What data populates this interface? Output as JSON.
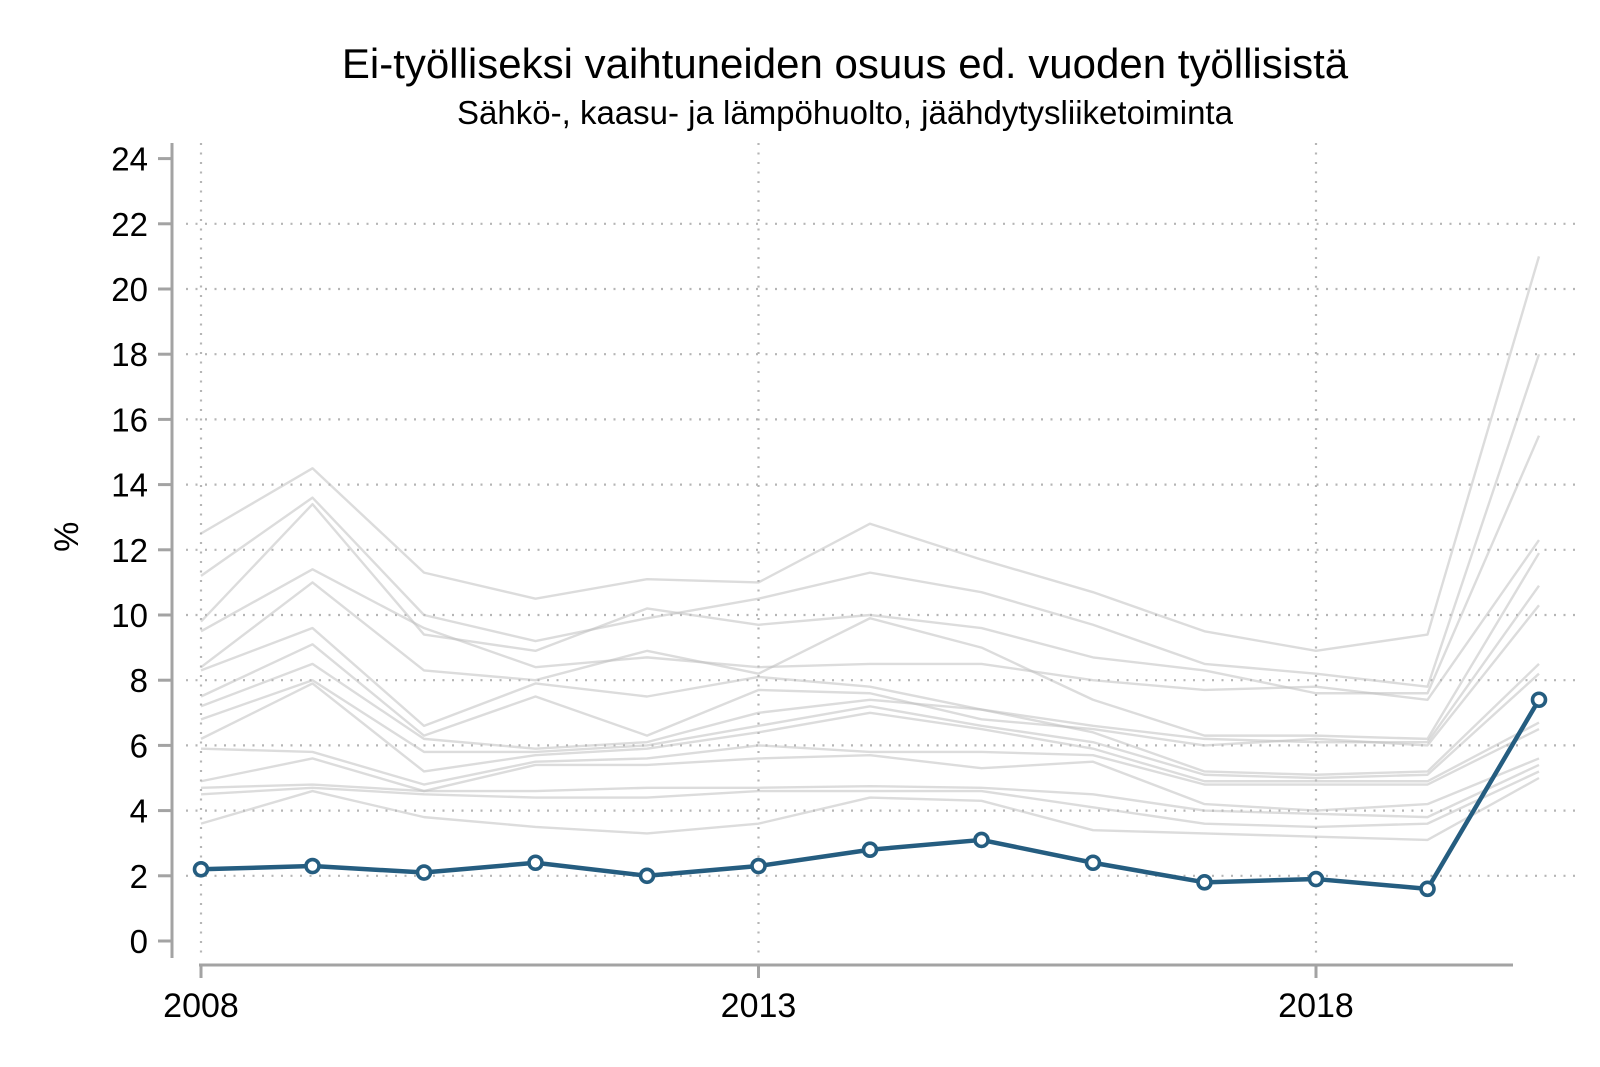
{
  "title": "Ei-työlliseksi vaihtuneiden osuus ed. vuoden työllisistä",
  "subtitle": "Sähkö-, kaasu- ja lämpöhuolto, jäähdytysliiketoiminta",
  "y_axis": {
    "label": "%",
    "min": 0,
    "max": 24,
    "tick_step": 2,
    "ticks": [
      0,
      2,
      4,
      6,
      8,
      10,
      12,
      14,
      16,
      18,
      20,
      22,
      24
    ],
    "gridline_values": [
      2,
      4,
      6,
      8,
      10,
      12,
      14,
      16,
      18,
      20,
      22
    ]
  },
  "x_axis": {
    "tick_labels": [
      "2008",
      "2013",
      "2018"
    ],
    "tick_years": [
      2008,
      2013,
      2018
    ],
    "gridline_years": [
      2008,
      2013,
      2018
    ]
  },
  "chart_data": {
    "type": "line",
    "x": [
      2008,
      2009,
      2010,
      2011,
      2012,
      2013,
      2014,
      2015,
      2016,
      2017,
      2018,
      2019,
      2020
    ],
    "title": "Ei-työlliseksi vaihtuneiden osuus ed. vuoden työllisistä",
    "subtitle": "Sähkö-, kaasu- ja lämpöhuolto, jäähdytysliiketoiminta",
    "xlabel": "",
    "ylabel": "%",
    "ylim": [
      0,
      24
    ],
    "grid": "dotted horizontal gridlines at even values, dotted vertical gridlines at 2008/2013/2018",
    "legend_position": "none",
    "highlight_series": {
      "name": "Sähkö-, kaasu- ja lämpöhuolto, jäähdytysliiketoiminta",
      "color": "#255D80",
      "marker": "open-circle",
      "values": [
        2.2,
        2.3,
        2.1,
        2.4,
        2.0,
        2.3,
        2.8,
        3.1,
        2.4,
        1.8,
        1.9,
        1.6,
        7.4
      ]
    },
    "background_series_color": "#bfbfbf",
    "background_series": [
      {
        "id": "g1",
        "values": [
          12.5,
          14.5,
          11.3,
          10.5,
          11.1,
          11.0,
          12.8,
          11.7,
          10.7,
          9.5,
          8.9,
          9.4,
          21.0
        ]
      },
      {
        "id": "g2",
        "values": [
          11.2,
          13.6,
          10.0,
          9.2,
          9.9,
          10.5,
          11.3,
          10.7,
          9.7,
          8.5,
          8.2,
          7.8,
          18.0
        ]
      },
      {
        "id": "g3",
        "values": [
          9.8,
          13.4,
          9.4,
          8.9,
          10.2,
          9.7,
          10.0,
          9.6,
          8.7,
          8.3,
          7.6,
          7.6,
          15.5
        ]
      },
      {
        "id": "g4",
        "values": [
          9.5,
          11.4,
          9.6,
          8.4,
          8.7,
          8.4,
          8.5,
          8.5,
          8.0,
          7.7,
          7.8,
          7.4,
          12.3
        ]
      },
      {
        "id": "g5",
        "values": [
          8.4,
          11.0,
          8.3,
          8.0,
          8.9,
          8.2,
          9.9,
          9.0,
          7.4,
          6.3,
          6.3,
          6.2,
          11.9
        ]
      },
      {
        "id": "g6",
        "values": [
          8.3,
          9.6,
          6.6,
          7.9,
          7.5,
          8.1,
          7.8,
          7.1,
          6.6,
          6.2,
          6.1,
          6.1,
          10.9
        ]
      },
      {
        "id": "g7",
        "values": [
          7.5,
          9.1,
          6.3,
          7.5,
          6.3,
          7.7,
          7.6,
          6.8,
          6.5,
          6.0,
          6.2,
          6.0,
          10.3
        ]
      },
      {
        "id": "g8",
        "values": [
          7.2,
          8.5,
          6.2,
          5.9,
          6.1,
          7.0,
          7.4,
          7.1,
          6.4,
          5.2,
          5.1,
          5.2,
          8.5
        ]
      },
      {
        "id": "g9",
        "values": [
          6.8,
          8.0,
          5.8,
          5.8,
          6.0,
          6.6,
          7.2,
          6.6,
          6.1,
          5.1,
          5.0,
          5.1,
          8.2
        ]
      },
      {
        "id": "g10",
        "values": [
          6.2,
          7.9,
          5.2,
          5.7,
          5.9,
          6.4,
          7.0,
          6.5,
          5.9,
          4.9,
          4.9,
          4.9,
          6.7
        ]
      },
      {
        "id": "g11",
        "values": [
          5.9,
          5.8,
          4.8,
          5.5,
          5.6,
          6.0,
          5.8,
          5.8,
          5.7,
          4.8,
          4.8,
          4.8,
          6.5
        ]
      },
      {
        "id": "g12",
        "values": [
          4.9,
          5.6,
          4.6,
          5.4,
          5.4,
          5.6,
          5.7,
          5.3,
          5.5,
          4.2,
          4.0,
          4.2,
          5.6
        ]
      },
      {
        "id": "g13",
        "values": [
          4.7,
          4.8,
          4.6,
          4.6,
          4.7,
          4.7,
          4.75,
          4.7,
          4.5,
          4.0,
          3.9,
          3.8,
          5.4
        ]
      },
      {
        "id": "g14",
        "values": [
          4.5,
          4.7,
          4.5,
          4.4,
          4.4,
          4.6,
          4.6,
          4.6,
          4.1,
          3.6,
          3.5,
          3.6,
          5.2
        ]
      },
      {
        "id": "g15",
        "values": [
          3.6,
          4.6,
          3.8,
          3.5,
          3.3,
          3.6,
          4.4,
          4.3,
          3.4,
          3.3,
          3.2,
          3.1,
          5.0
        ]
      }
    ]
  },
  "colors": {
    "highlight_line": "#255D80",
    "background_line": "#bfbfbf",
    "gridline": "#b5b5b5",
    "axis": "#a3a3a3",
    "text": "#000000",
    "background": "#ffffff"
  }
}
